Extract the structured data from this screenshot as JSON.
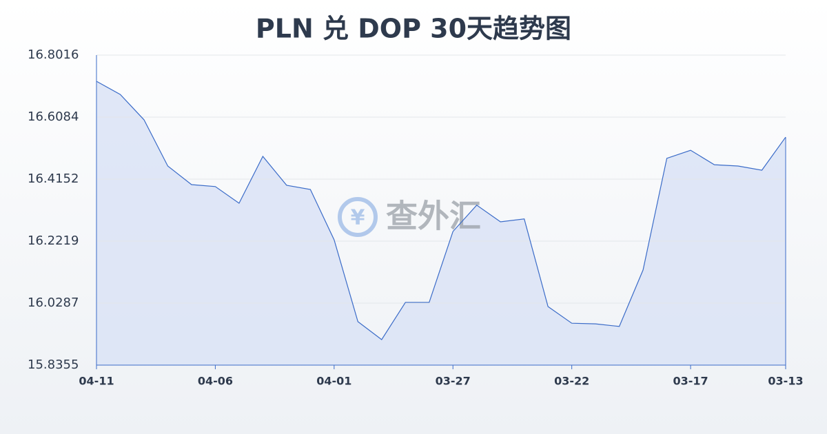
{
  "chart_data": {
    "type": "area",
    "title": "PLN 兑 DOP 30天趋势图",
    "watermark": "查外汇",
    "categories": [
      "04-11",
      null,
      null,
      null,
      null,
      "04-06",
      null,
      null,
      null,
      null,
      "04-01",
      null,
      null,
      null,
      null,
      "03-27",
      null,
      null,
      null,
      null,
      "03-22",
      null,
      null,
      null,
      null,
      "03-17",
      null,
      null,
      null,
      "03-13"
    ],
    "values": [
      16.72,
      16.679,
      16.6,
      16.456,
      16.398,
      16.392,
      16.34,
      16.486,
      16.396,
      16.383,
      16.226,
      15.971,
      15.915,
      16.031,
      16.031,
      16.252,
      16.334,
      16.282,
      16.291,
      16.018,
      15.966,
      15.964,
      15.956,
      16.132,
      16.48,
      16.505,
      16.46,
      16.456,
      16.443,
      16.546
    ],
    "color": "#3a6bc8",
    "fill": "#dbe3f6",
    "ylim": [
      15.8355,
      16.8016
    ],
    "yticks": [
      15.8355,
      16.0287,
      16.2219,
      16.4152,
      16.6084,
      16.8016
    ],
    "grid": true
  }
}
